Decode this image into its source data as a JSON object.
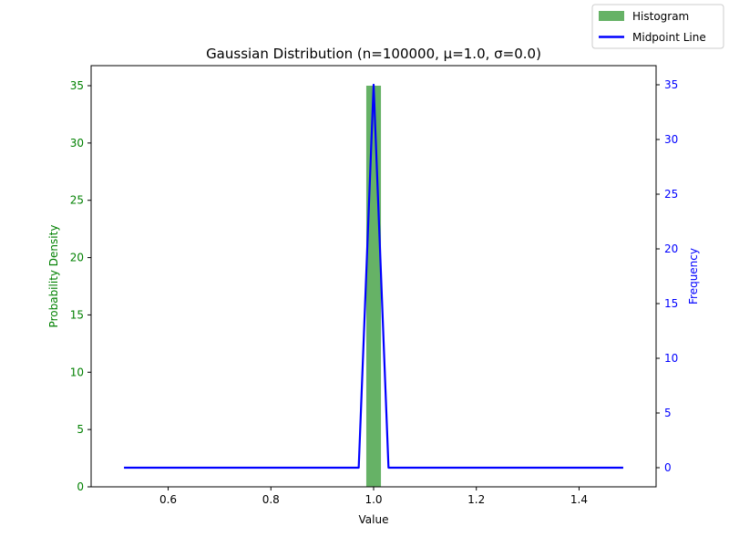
{
  "chart_data": {
    "type": "bar",
    "title": "Gaussian Distribution (n=100000, μ=1.0, σ=0.0)",
    "xlabel": "Value",
    "ylabel_left": "Probability Density",
    "ylabel_right": "Frequency",
    "xlim": [
      0.45,
      1.55
    ],
    "ylim_left": [
      0,
      36.75
    ],
    "ylim_right": [
      -1.75,
      36.75
    ],
    "xticks": [
      0.6,
      0.8,
      1.0,
      1.2,
      1.4
    ],
    "xtick_labels": [
      "0.6",
      "0.8",
      "1.0",
      "1.2",
      "1.4"
    ],
    "yticks_left": [
      0,
      5,
      10,
      15,
      20,
      25,
      30,
      35
    ],
    "yticks_right": [
      0,
      5,
      10,
      15,
      20,
      25,
      30,
      35
    ],
    "grid": false,
    "legend_placement": "top-right",
    "histogram": {
      "name": "Histogram",
      "color": "#66b266",
      "bins": [
        {
          "x0": 0.9857,
          "x1": 1.0143,
          "value": 35
        }
      ]
    },
    "midpoint_line": {
      "name": "Midpoint Line",
      "color": "#0000ff",
      "x": [
        0.514,
        0.971,
        1.0,
        1.029,
        1.486
      ],
      "y": [
        0,
        0,
        35,
        0,
        0
      ]
    },
    "left_axis_color": "#008000",
    "right_axis_color": "#0000ff"
  }
}
